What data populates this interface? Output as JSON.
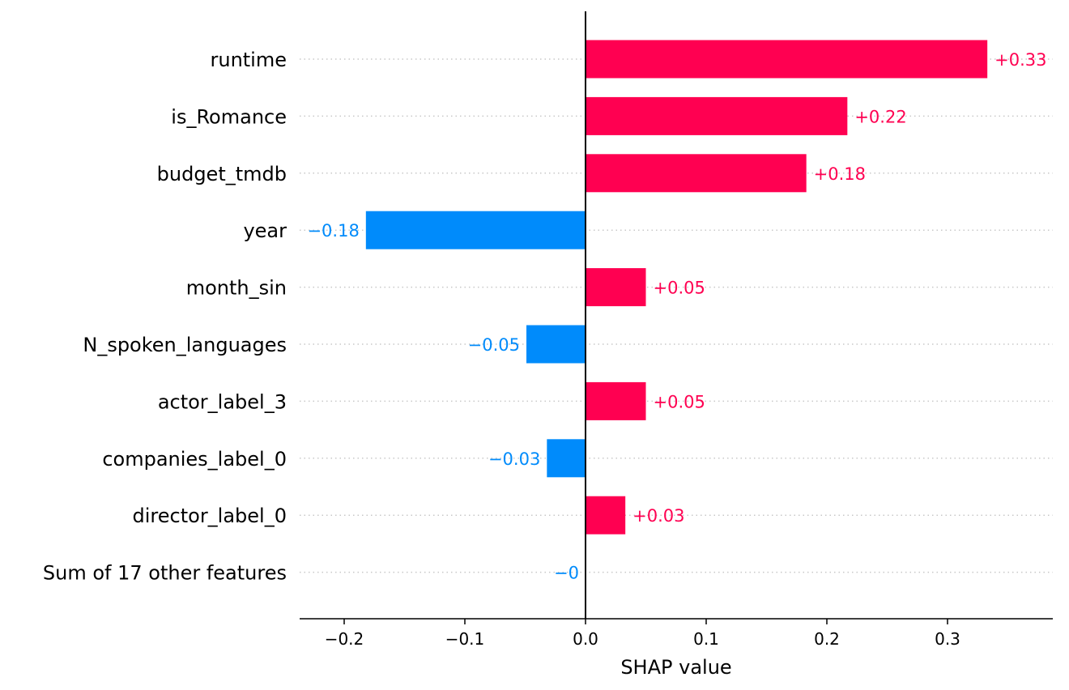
{
  "chart_data": {
    "type": "bar",
    "orientation": "horizontal",
    "xlabel": "SHAP value",
    "xlim": [
      -0.238,
      0.386
    ],
    "xticks": [
      -0.2,
      -0.1,
      0.0,
      0.1,
      0.2,
      0.3
    ],
    "xtick_labels": [
      "−0.2",
      "−0.1",
      "0.0",
      "0.1",
      "0.2",
      "0.3"
    ],
    "grid": false,
    "colors": {
      "positive": "#ff0051",
      "negative": "#008bfb"
    },
    "categories": [
      "runtime",
      "is_Romance",
      "budget_tmdb",
      "year",
      "month_sin",
      "N_spoken_languages",
      "actor_label_3",
      "companies_label_0",
      "director_label_0",
      "Sum of 17 other features"
    ],
    "values": [
      0.333,
      0.217,
      0.183,
      -0.182,
      0.05,
      -0.049,
      0.05,
      -0.032,
      0.033,
      -0.0
    ],
    "value_labels": [
      "+0.33",
      "+0.22",
      "+0.18",
      "−0.18",
      "+0.05",
      "−0.05",
      "+0.05",
      "−0.03",
      "+0.03",
      "−0"
    ]
  }
}
